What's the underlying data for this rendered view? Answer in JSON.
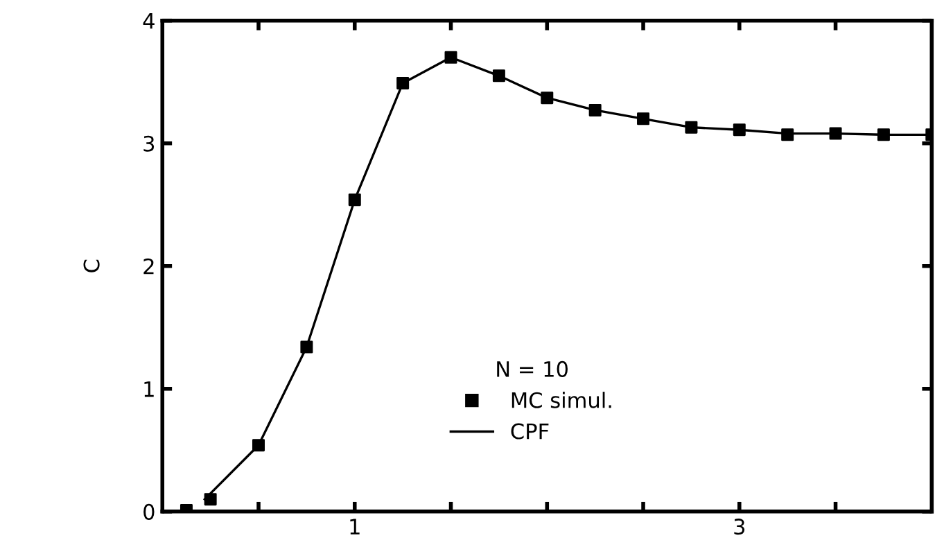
{
  "chart_data": {
    "type": "scatter",
    "ylabel": "C",
    "legend_title": "N = 10",
    "legend": "bottom right",
    "grid": false,
    "xlim": [
      0,
      4
    ],
    "ylim": [
      0,
      4
    ],
    "xticks": [
      {
        "value": 0.5,
        "label": null
      },
      1,
      {
        "value": 1.5,
        "label": null
      },
      {
        "value": 2,
        "label": null
      },
      {
        "value": 2.5,
        "label": null
      },
      3,
      {
        "value": 3.5,
        "label": null
      }
    ],
    "yticks": [
      0,
      1,
      2,
      3,
      4
    ],
    "series": [
      {
        "name": "MC simul.",
        "marker": "square",
        "color": "#000000",
        "x": [
          0.125,
          0.25,
          0.5,
          0.75,
          1.0,
          1.25,
          1.5,
          1.75,
          2.0,
          2.25,
          2.5,
          2.75,
          3.0,
          3.25,
          3.5,
          3.75,
          4.0
        ],
        "values": [
          0.01,
          0.1,
          0.54,
          1.34,
          2.54,
          3.49,
          3.7,
          3.55,
          3.37,
          3.27,
          3.2,
          3.13,
          3.11,
          3.07,
          3.08,
          3.07,
          3.07
        ]
      },
      {
        "name": "CPF",
        "type": "line",
        "marker": "none",
        "line_style": "solid",
        "color": "#000000",
        "x": [
          0.22,
          0.5,
          0.75,
          1.0,
          1.25,
          1.5,
          1.75,
          2.0,
          2.25,
          2.5,
          2.75,
          3.0,
          3.25,
          3.5,
          3.75,
          4.0
        ],
        "values": [
          0.1,
          0.54,
          1.34,
          2.54,
          3.49,
          3.7,
          3.55,
          3.37,
          3.27,
          3.2,
          3.13,
          3.11,
          3.08,
          3.08,
          3.07,
          3.07
        ]
      }
    ]
  }
}
